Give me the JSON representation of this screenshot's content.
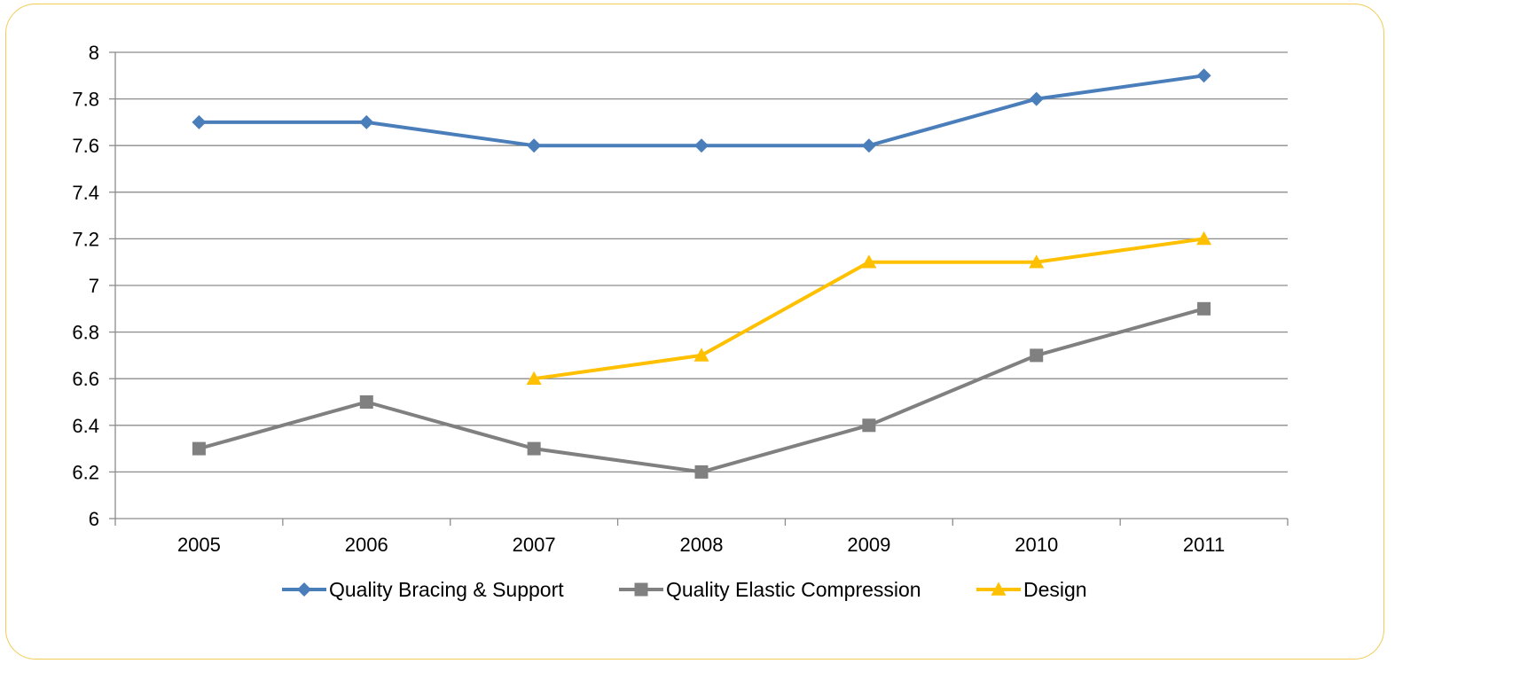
{
  "chart_data": {
    "type": "line",
    "title": "",
    "xlabel": "",
    "ylabel": "",
    "categories": [
      "2005",
      "2006",
      "2007",
      "2008",
      "2009",
      "2010",
      "2011"
    ],
    "ylim": [
      6,
      8
    ],
    "ytick_step": 0.2,
    "yticks": [
      "6",
      "6.2",
      "6.4",
      "6.6",
      "6.8",
      "7",
      "7.2",
      "7.4",
      "7.6",
      "7.8",
      "8"
    ],
    "grid": true,
    "legend_position": "bottom",
    "series": [
      {
        "name": "Quality Bracing & Support",
        "values": [
          7.7,
          7.7,
          7.6,
          7.6,
          7.6,
          7.8,
          7.9
        ],
        "color": "#4A7EBB",
        "marker": "diamond"
      },
      {
        "name": "Quality Elastic Compression",
        "values": [
          6.3,
          6.5,
          6.3,
          6.2,
          6.4,
          6.7,
          6.9
        ],
        "color": "#808080",
        "marker": "square"
      },
      {
        "name": "Design",
        "values": [
          null,
          null,
          6.6,
          6.7,
          7.1,
          7.1,
          7.2
        ],
        "color": "#FFC000",
        "marker": "triangle"
      }
    ]
  },
  "frame": {
    "border_color": "#F2CC55"
  }
}
